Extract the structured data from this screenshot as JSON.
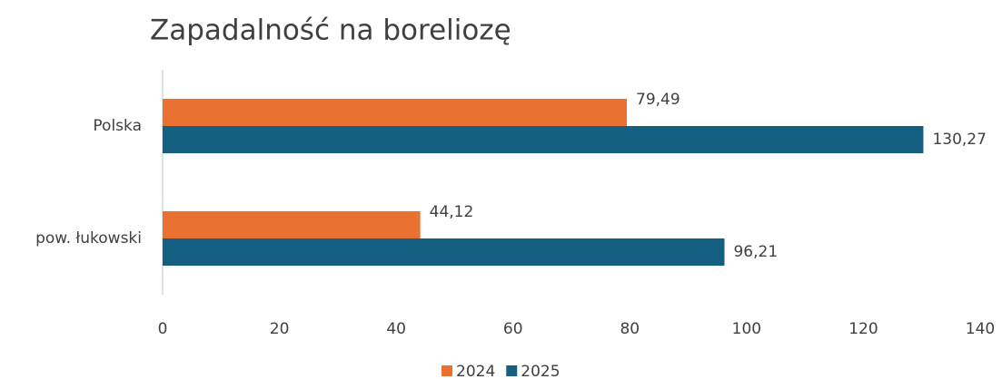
{
  "chart_data": {
    "type": "hbar",
    "title": "Zapadalność na boreliozę",
    "categories": [
      "Polska",
      "pow. łukowski"
    ],
    "series": [
      {
        "name": "2024",
        "color": "#e97132",
        "values": [
          79.49,
          44.12
        ],
        "value_labels": [
          "79,49",
          "44,12"
        ]
      },
      {
        "name": "2025",
        "color": "#156082",
        "values": [
          130.27,
          96.21
        ],
        "value_labels": [
          "130,27",
          "96,21"
        ]
      }
    ],
    "xlim": [
      0,
      140
    ],
    "xticks": [
      0,
      20,
      40,
      60,
      80,
      100,
      120,
      140
    ],
    "grid": false,
    "legend": "bottom"
  }
}
